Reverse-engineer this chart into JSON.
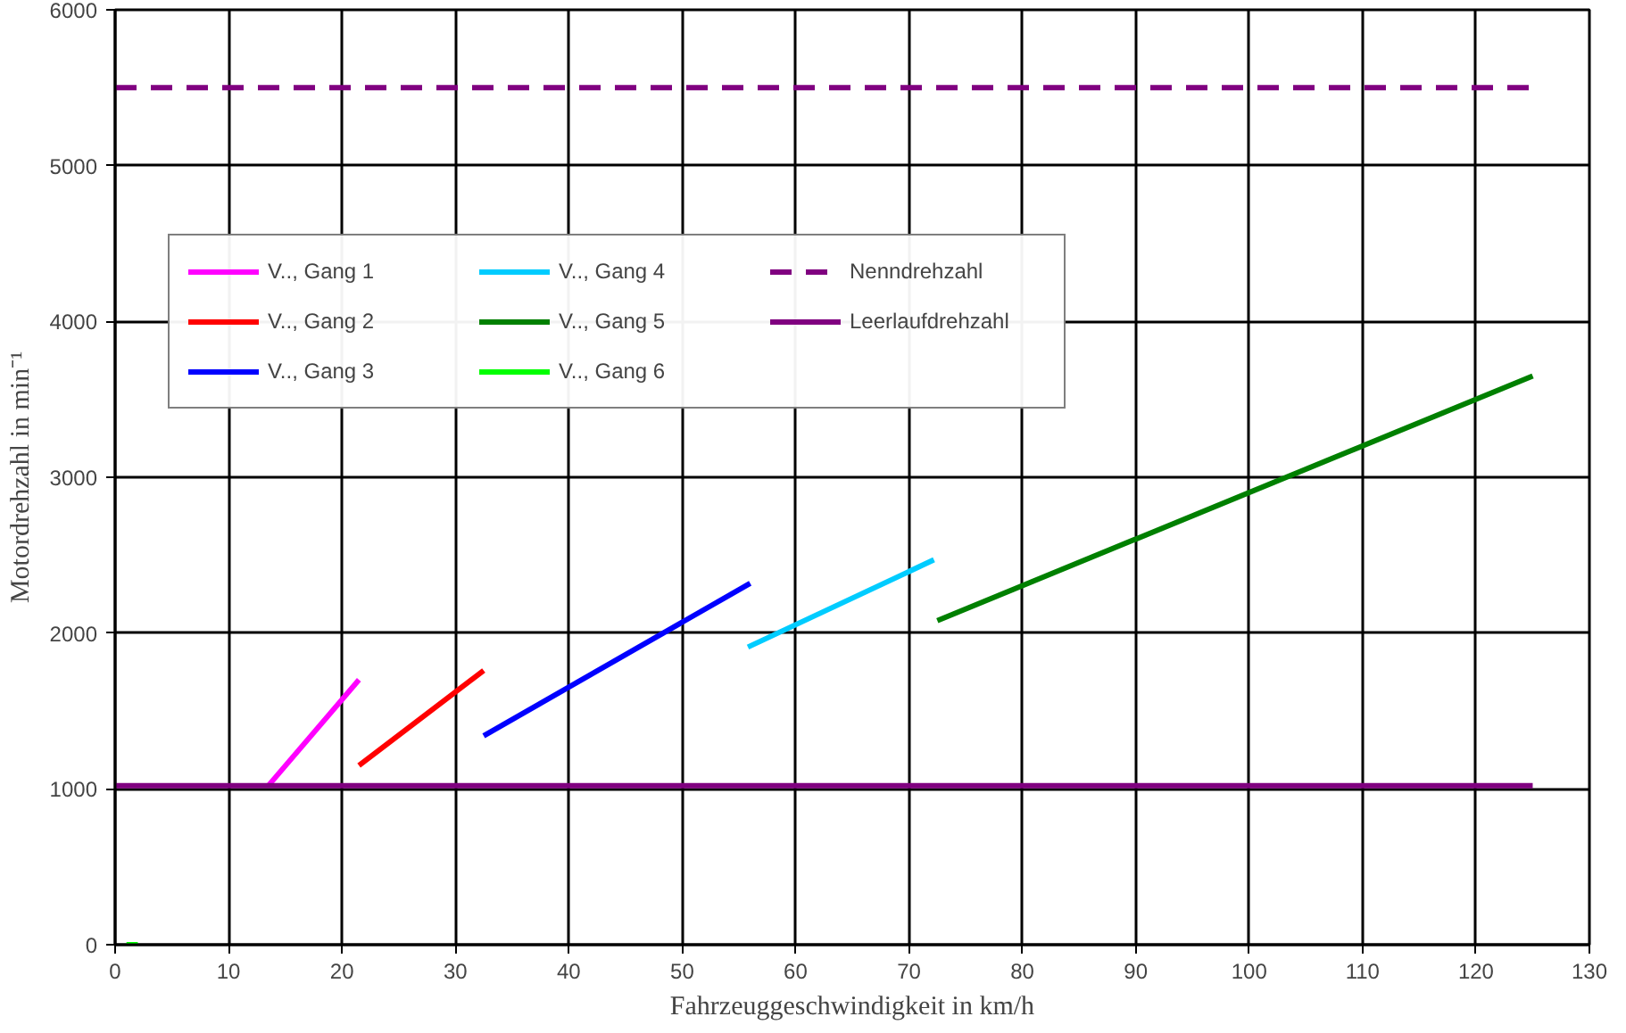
{
  "chart_data": {
    "type": "line",
    "xlabel": "Fahrzeuggeschwindigkeit in km/h",
    "ylabel": "Motordrehzahl in min⁻¹",
    "xlim": [
      0,
      130
    ],
    "ylim": [
      0,
      6000
    ],
    "xticks": [
      0,
      10,
      20,
      30,
      40,
      50,
      60,
      70,
      80,
      90,
      100,
      110,
      120,
      130
    ],
    "yticks": [
      0,
      1000,
      2000,
      3000,
      4000,
      5000,
      6000
    ],
    "grid": true,
    "legend": "top left",
    "marker": "none",
    "series": [
      {
        "name": "V.., Gang 1",
        "color": "#ff00ff",
        "x": [
          13.5,
          21.5
        ],
        "values": [
          1020,
          1700
        ]
      },
      {
        "name": "V.., Gang 2",
        "color": "#ff0000",
        "x": [
          21.5,
          32.5
        ],
        "values": [
          1150,
          1760
        ]
      },
      {
        "name": "V.., Gang 3",
        "color": "#0000ff",
        "x": [
          32.5,
          56
        ],
        "values": [
          1340,
          2320
        ]
      },
      {
        "name": "V.., Gang 4",
        "color": "#00ccff",
        "x": [
          55.8,
          72.2
        ],
        "values": [
          1910,
          2470
        ]
      },
      {
        "name": "V.., Gang 5",
        "color": "#008000",
        "x": [
          72.5,
          125
        ],
        "values": [
          2080,
          3650
        ]
      },
      {
        "name": "V.., Gang 6",
        "color": "#00ff00",
        "x": [
          1,
          2
        ],
        "values": [
          0,
          0
        ]
      },
      {
        "name": "Nenndrehzahl",
        "color": "#800080",
        "x": [
          0,
          125
        ],
        "values": [
          5500,
          5500
        ],
        "line_style": "dashed"
      },
      {
        "name": "Leerlaufdrehzahl",
        "color": "#800080",
        "x": [
          0,
          125
        ],
        "values": [
          1020,
          1020
        ],
        "line_style": "solid"
      }
    ]
  }
}
